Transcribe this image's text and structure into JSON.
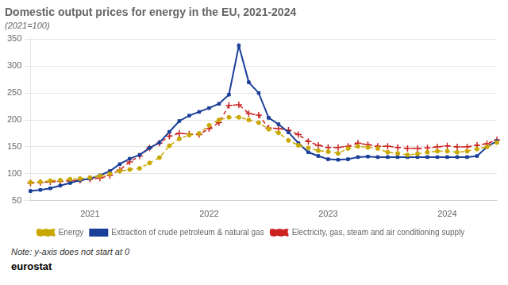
{
  "chart_data": {
    "type": "line",
    "title": "Domestic output prices for energy in the EU, 2021-2024",
    "subtitle": "(2021=100)",
    "annotations": [
      "Note: y-axis does not start at 0",
      "eurostat"
    ],
    "categories": [
      null,
      null,
      null,
      null,
      null,
      null,
      "2021",
      null,
      null,
      null,
      null,
      null,
      null,
      null,
      null,
      null,
      null,
      null,
      "2022",
      null,
      null,
      null,
      null,
      null,
      null,
      null,
      null,
      null,
      null,
      null,
      "2023",
      null,
      null,
      null,
      null,
      null,
      null,
      null,
      null,
      null,
      null,
      null,
      "2024",
      null,
      null,
      null,
      null,
      null
    ],
    "series": [
      {
        "name": "Energy",
        "color": "#c8a800",
        "line_style": "dashed",
        "marker": "circle",
        "values": [
          84,
          85,
          87,
          88,
          90,
          91,
          93,
          96,
          100,
          105,
          108,
          110,
          120,
          130,
          152,
          165,
          172,
          175,
          190,
          200,
          205,
          205,
          200,
          195,
          183,
          176,
          162,
          153,
          148,
          143,
          141,
          138,
          147,
          151,
          149,
          147,
          140,
          138,
          135,
          137,
          140,
          142,
          142,
          140,
          142,
          146,
          150,
          158
        ]
      },
      {
        "name": "Extraction of crude petroleum & natural gas",
        "color": "#1a3f99",
        "line_style": "solid",
        "marker": "square",
        "values": [
          68,
          70,
          73,
          78,
          83,
          88,
          91,
          97,
          105,
          118,
          128,
          135,
          148,
          158,
          178,
          198,
          208,
          215,
          222,
          230,
          247,
          338,
          270,
          250,
          204,
          192,
          177,
          157,
          140,
          133,
          127,
          126,
          127,
          131,
          132,
          131,
          131,
          131,
          131,
          131,
          131,
          131,
          131,
          131,
          131,
          133,
          150,
          161
        ]
      },
      {
        "name": "Electricity, gas, steam and air conditioning supply",
        "color": "#cc2222",
        "line_style": "dashed",
        "marker": "plus",
        "values": [
          83,
          84,
          85,
          86,
          87,
          88,
          90,
          92,
          97,
          107,
          122,
          133,
          148,
          157,
          170,
          175,
          174,
          173,
          184,
          195,
          227,
          228,
          212,
          209,
          185,
          184,
          181,
          173,
          160,
          153,
          149,
          149,
          151,
          157,
          154,
          151,
          151,
          149,
          147,
          147,
          148,
          150,
          152,
          150,
          150,
          153,
          156,
          163
        ]
      }
    ],
    "ylim": [
      50,
      355
    ],
    "yticks": [
      50,
      100,
      150,
      200,
      250,
      300,
      350
    ],
    "grid": true,
    "legend": "bottom"
  }
}
